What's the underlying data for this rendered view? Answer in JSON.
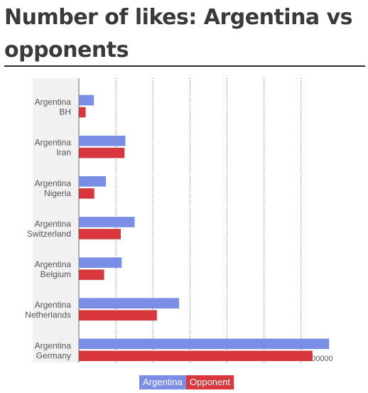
{
  "page": {
    "title": "Number of likes: Argentina vs opponents"
  },
  "chart_data": {
    "type": "bar",
    "orientation": "horizontal",
    "title": "",
    "xlabel": "",
    "ylabel": "",
    "categories": [
      [
        "Argentina",
        "BH"
      ],
      [
        "Argentina",
        "Iran"
      ],
      [
        "Argentina",
        "Nigeria"
      ],
      [
        "Argentina",
        "Switzerland"
      ],
      [
        "Argentina",
        "Belgium"
      ],
      [
        "Argentina",
        "Netherlands"
      ],
      [
        "Argentina",
        "Germany"
      ]
    ],
    "series": [
      {
        "name": "Argentina",
        "color": "#7b8ee6",
        "values": [
          80000,
          250000,
          145000,
          300000,
          230000,
          540000,
          1350000
        ]
      },
      {
        "name": "Opponent",
        "color": "#d9373d",
        "values": [
          35000,
          245000,
          82000,
          225000,
          135000,
          420000,
          1260000
        ]
      }
    ],
    "xlim": [
      0,
      1400000
    ],
    "xticks": [
      0,
      200000,
      400000,
      600000,
      800000,
      1000000,
      1200000
    ],
    "grid": "vertical-dotted",
    "legend": "bottom-center"
  }
}
